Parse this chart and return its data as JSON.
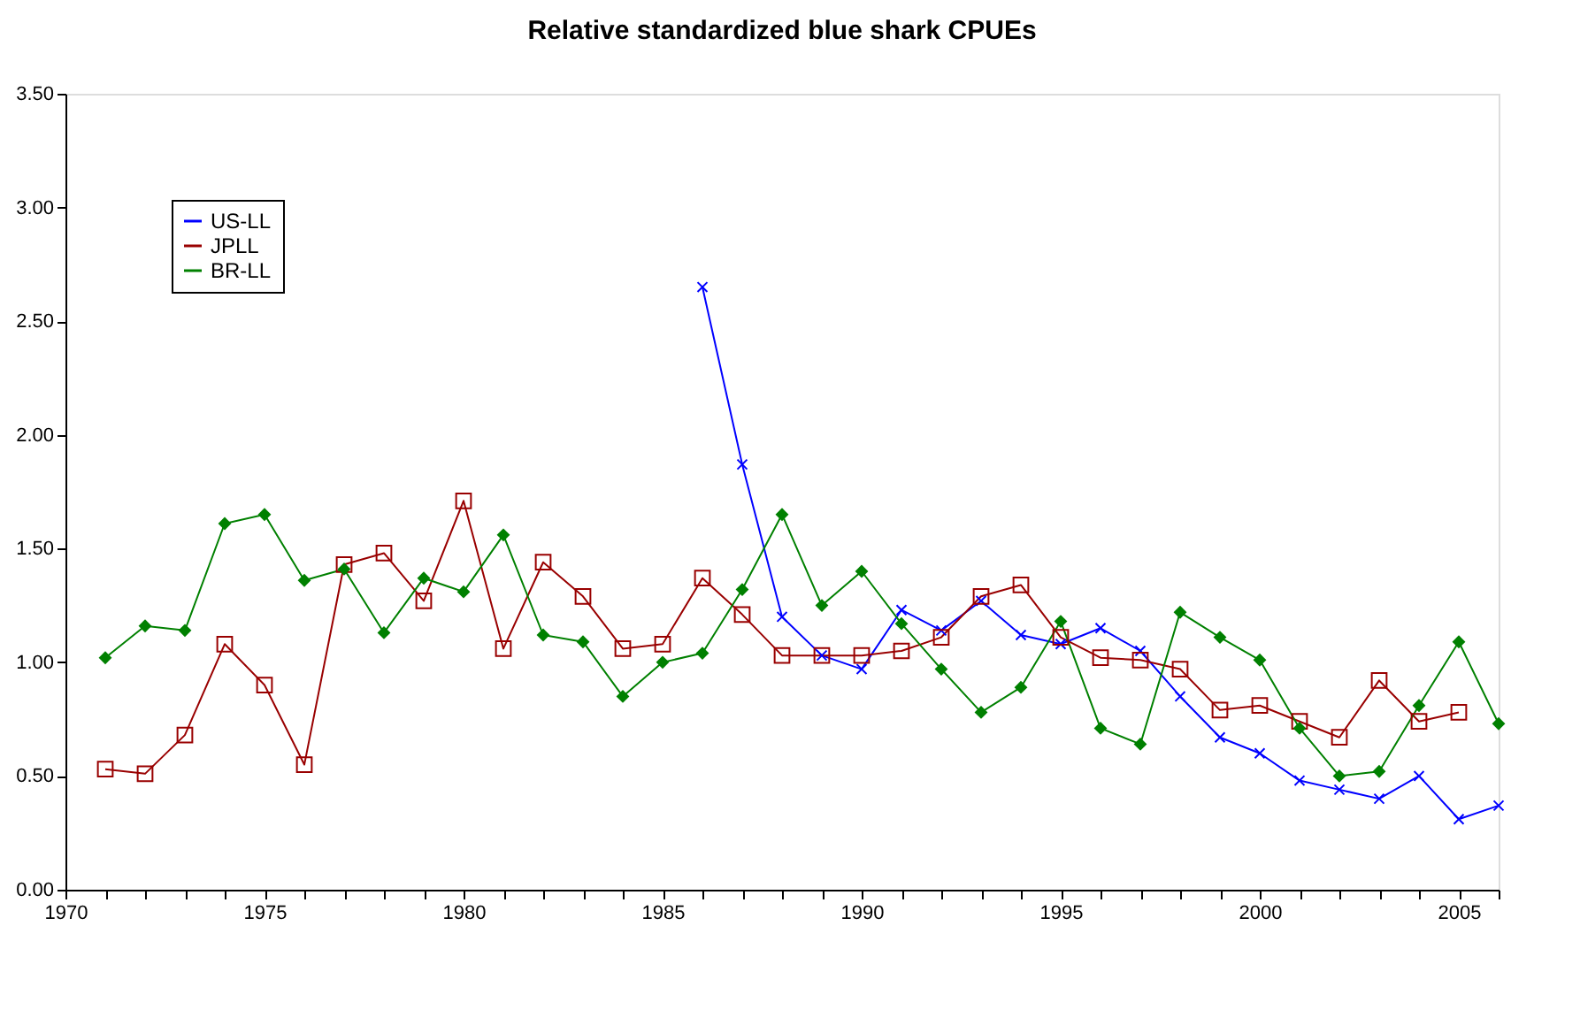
{
  "chart_data": {
    "type": "line",
    "title": "Relative standardized blue shark CPUEs",
    "xlim": [
      1970,
      2006
    ],
    "xticks": [
      1970,
      {
        "value": 1971,
        "label": null
      },
      {
        "value": 1972,
        "label": null
      },
      {
        "value": 1973,
        "label": null
      },
      {
        "value": 1974,
        "label": null
      },
      1975,
      {
        "value": 1976,
        "label": null
      },
      {
        "value": 1977,
        "label": null
      },
      {
        "value": 1978,
        "label": null
      },
      {
        "value": 1979,
        "label": null
      },
      1980,
      {
        "value": 1981,
        "label": null
      },
      {
        "value": 1982,
        "label": null
      },
      {
        "value": 1983,
        "label": null
      },
      {
        "value": 1984,
        "label": null
      },
      1985,
      {
        "value": 1986,
        "label": null
      },
      {
        "value": 1987,
        "label": null
      },
      {
        "value": 1988,
        "label": null
      },
      {
        "value": 1989,
        "label": null
      },
      1990,
      {
        "value": 1991,
        "label": null
      },
      {
        "value": 1992,
        "label": null
      },
      {
        "value": 1993,
        "label": null
      },
      {
        "value": 1994,
        "label": null
      },
      1995,
      {
        "value": 1996,
        "label": null
      },
      {
        "value": 1997,
        "label": null
      },
      {
        "value": 1998,
        "label": null
      },
      {
        "value": 1999,
        "label": null
      },
      2000,
      {
        "value": 2001,
        "label": null
      },
      {
        "value": 2002,
        "label": null
      },
      {
        "value": 2003,
        "label": null
      },
      {
        "value": 2004,
        "label": null
      },
      2005,
      {
        "value": 2006,
        "label": null
      }
    ],
    "ylim": [
      0,
      3.5
    ],
    "yticks": [
      {
        "value": 0,
        "label": "0.00"
      },
      {
        "value": 0.5,
        "label": "0.50"
      },
      {
        "value": 1,
        "label": "1.00"
      },
      {
        "value": 1.5,
        "label": "1.50"
      },
      {
        "value": 2,
        "label": "2.00"
      },
      {
        "value": 2.5,
        "label": "2.50"
      },
      {
        "value": 3,
        "label": "3.00"
      },
      {
        "value": 3.5,
        "label": "3.50"
      }
    ],
    "grid": false,
    "legend": "top left",
    "line_style": "solid",
    "series": [
      {
        "name": "US-LL",
        "color": "#0000ff",
        "marker": "cross",
        "x": [
          1986,
          1987,
          1988,
          1989,
          1990,
          1991,
          1992,
          1993,
          1994,
          1995,
          1996,
          1997,
          1998,
          1999,
          2000,
          2001,
          2002,
          2003,
          2004,
          2005,
          2006
        ],
        "values": [
          2.65,
          1.87,
          1.2,
          1.03,
          0.97,
          1.23,
          1.14,
          1.27,
          1.12,
          1.08,
          1.15,
          1.05,
          0.85,
          0.67,
          0.6,
          0.48,
          0.44,
          0.4,
          0.5,
          0.31,
          0.37
        ]
      },
      {
        "name": "JPLL",
        "color": "#990000",
        "marker": "square",
        "x": [
          1971,
          1972,
          1973,
          1974,
          1975,
          1976,
          1977,
          1978,
          1979,
          1980,
          1981,
          1982,
          1983,
          1984,
          1985,
          1986,
          1987,
          1988,
          1989,
          1990,
          1991,
          1992,
          1993,
          1994,
          1995,
          1996,
          1997,
          1998,
          1999,
          2000,
          2001,
          2002,
          2003,
          2004,
          2005
        ],
        "values": [
          0.53,
          0.51,
          0.68,
          1.08,
          0.9,
          0.55,
          1.43,
          1.48,
          1.27,
          1.71,
          1.06,
          1.44,
          1.29,
          1.06,
          1.08,
          1.37,
          1.21,
          1.03,
          1.03,
          1.03,
          1.05,
          1.11,
          1.29,
          1.34,
          1.11,
          1.02,
          1.01,
          0.97,
          0.79,
          0.81,
          0.74,
          0.67,
          0.92,
          0.74,
          0.78
        ]
      },
      {
        "name": "BR-LL",
        "color": "#008000",
        "marker": "diamond",
        "x": [
          1971,
          1972,
          1973,
          1974,
          1975,
          1976,
          1977,
          1978,
          1979,
          1980,
          1981,
          1982,
          1983,
          1984,
          1985,
          1986,
          1987,
          1988,
          1989,
          1990,
          1991,
          1992,
          1993,
          1994,
          1995,
          1996,
          1997,
          1998,
          1999,
          2000,
          2001,
          2002,
          2003,
          2004,
          2005,
          2006
        ],
        "values": [
          1.02,
          1.16,
          1.14,
          1.61,
          1.65,
          1.36,
          1.41,
          1.13,
          1.37,
          1.31,
          1.56,
          1.12,
          1.09,
          0.85,
          1.0,
          1.04,
          1.32,
          1.65,
          1.25,
          1.4,
          1.17,
          0.97,
          0.78,
          0.89,
          1.18,
          0.71,
          0.64,
          1.22,
          1.11,
          1.01,
          0.71,
          0.5,
          0.52,
          0.81,
          1.09,
          0.73
        ]
      }
    ]
  }
}
